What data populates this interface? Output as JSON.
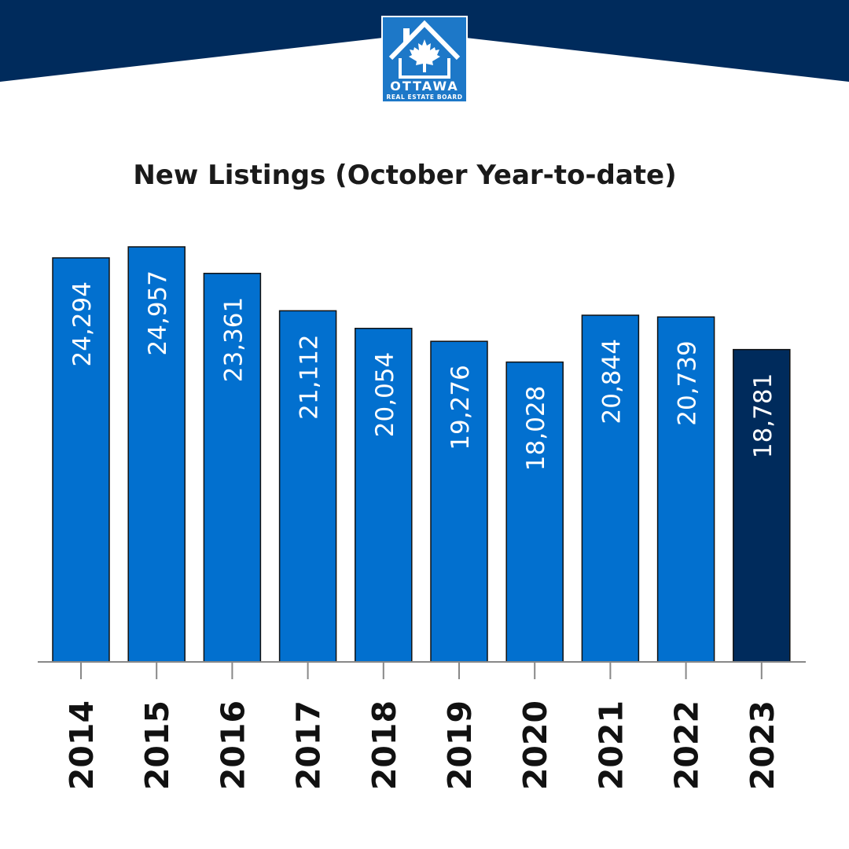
{
  "brand": {
    "logo_name": "OTTAWA",
    "logo_subtitle": "REAL ESTATE BOARD"
  },
  "colors": {
    "header_band": "#002b5c",
    "bar": "#0270cf",
    "bar_highlight": "#002b5c",
    "logo_bg": "#1d78c8",
    "axis": "#888888",
    "tick_label": "#111111",
    "value_label": "#ffffff"
  },
  "chart_data": {
    "type": "bar",
    "title": "New Listings (October Year-to-date)",
    "xlabel": "",
    "ylabel": "",
    "categories": [
      "2014",
      "2015",
      "2016",
      "2017",
      "2018",
      "2019",
      "2020",
      "2021",
      "2022",
      "2023"
    ],
    "values": [
      24294,
      24957,
      23361,
      21112,
      20054,
      19276,
      18028,
      20844,
      20739,
      18781
    ],
    "value_labels": [
      "24,294",
      "24,957",
      "23,361",
      "21,112",
      "20,054",
      "19,276",
      "18,028",
      "20,844",
      "20,739",
      "18,781"
    ],
    "highlight_category": "2023",
    "ylim": [
      0,
      25600
    ],
    "grid": false,
    "legend": "none"
  }
}
